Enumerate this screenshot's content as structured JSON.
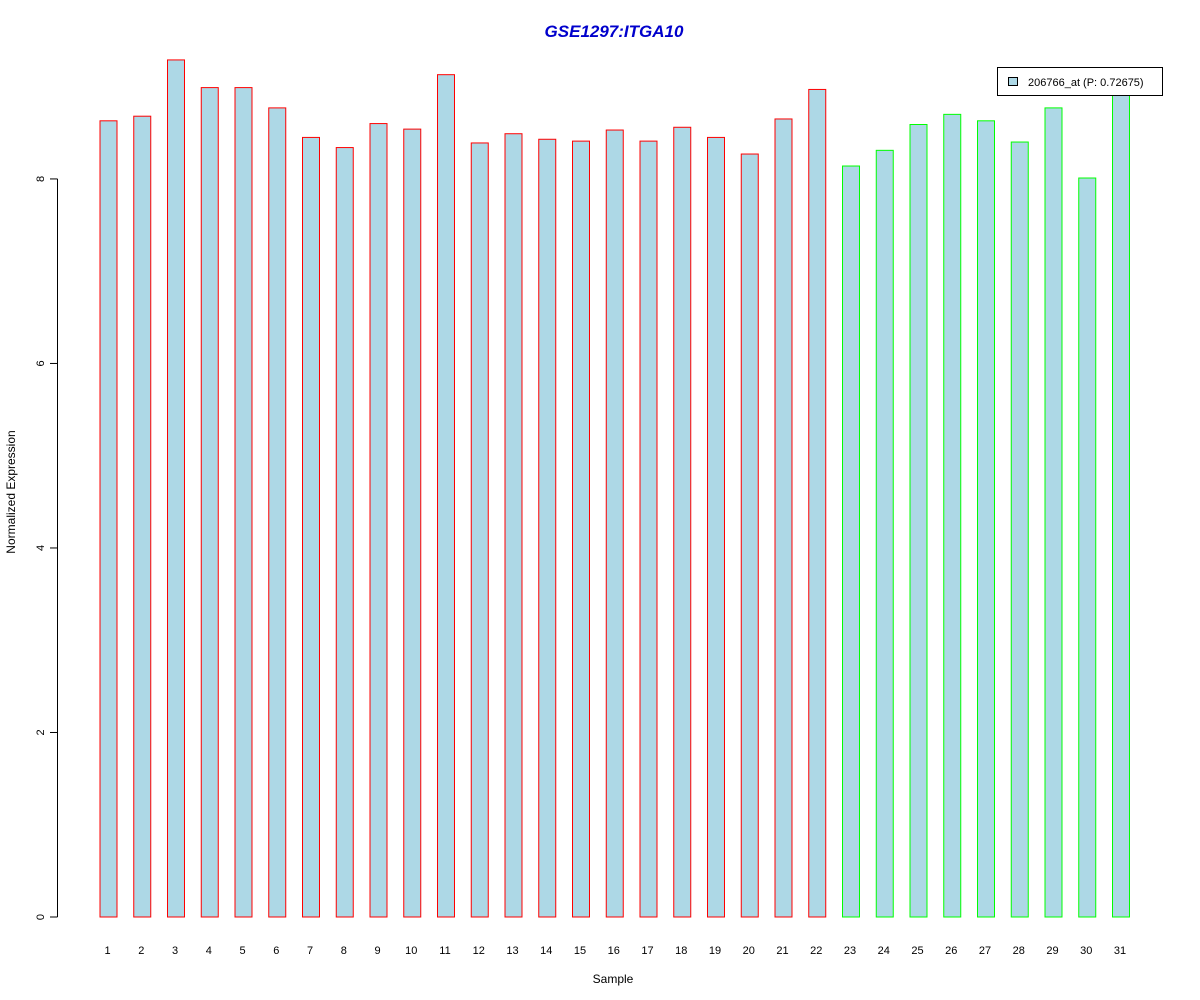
{
  "chart_data": {
    "type": "bar",
    "title": "GSE1297:ITGA10",
    "xlabel": "Sample",
    "ylabel": "Normalized Expression",
    "categories": [
      "1",
      "2",
      "3",
      "4",
      "5",
      "6",
      "7",
      "8",
      "9",
      "10",
      "11",
      "12",
      "13",
      "14",
      "15",
      "16",
      "17",
      "18",
      "19",
      "20",
      "21",
      "22",
      "23",
      "24",
      "25",
      "26",
      "27",
      "28",
      "29",
      "30",
      "31"
    ],
    "series": [
      {
        "name": "206766_at (P: 0.72675)",
        "values": [
          8.63,
          8.68,
          9.29,
          8.99,
          8.99,
          8.77,
          8.45,
          8.34,
          8.6,
          8.54,
          9.13,
          8.39,
          8.49,
          8.43,
          8.41,
          8.53,
          8.41,
          8.56,
          8.45,
          8.27,
          8.65,
          8.97,
          8.14,
          8.31,
          8.59,
          8.7,
          8.63,
          8.4,
          8.77,
          8.01,
          8.93
        ]
      }
    ],
    "group_a_end": 22,
    "ylim": [
      0,
      9.3
    ],
    "yticks": [
      "0",
      "2",
      "4",
      "6",
      "8"
    ],
    "legend_placement": "top-right",
    "grid": false,
    "colors": {
      "title": "#0000cc",
      "bar_fill": "#add8e6",
      "group_a_border": "#ff0000",
      "group_b_border": "#00ff00",
      "axis": "#000000"
    }
  }
}
